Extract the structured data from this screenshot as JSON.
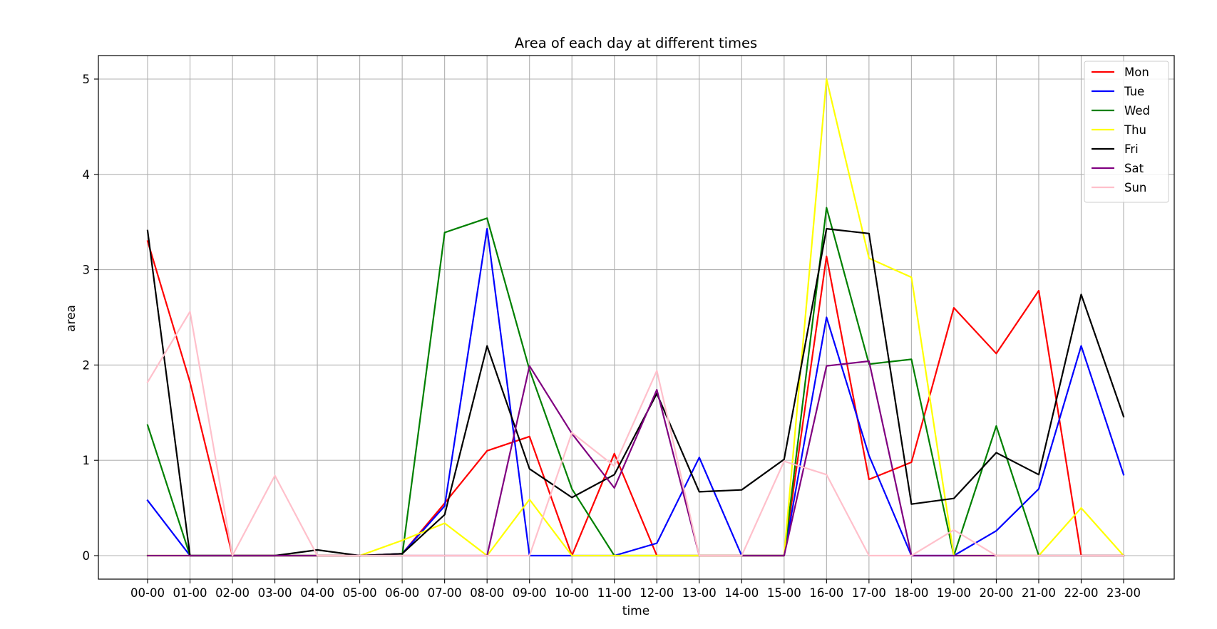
{
  "chart_data": {
    "type": "line",
    "title": "Area of each day at different times",
    "xlabel": "time",
    "ylabel": "area",
    "ylim": [
      -0.25,
      5.25
    ],
    "yticks": [
      0,
      1,
      2,
      3,
      4,
      5
    ],
    "grid": true,
    "legend_position": "top-right",
    "categories": [
      "00-00",
      "01-00",
      "02-00",
      "03-00",
      "04-00",
      "05-00",
      "06-00",
      "07-00",
      "08-00",
      "09-00",
      "10-00",
      "11-00",
      "12-00",
      "13-00",
      "14-00",
      "15-00",
      "16-00",
      "17-00",
      "18-00",
      "19-00",
      "20-00",
      "21-00",
      "22-00",
      "23-00"
    ],
    "series": [
      {
        "name": "Mon",
        "color": "#ff0000",
        "values": [
          3.3,
          1.82,
          0,
          0,
          0,
          0,
          0.02,
          0.55,
          1.1,
          1.25,
          0,
          1.07,
          0,
          0,
          0,
          0,
          3.14,
          0.8,
          0.98,
          2.6,
          2.12,
          2.78,
          0,
          0
        ]
      },
      {
        "name": "Tue",
        "color": "#0000ff",
        "values": [
          0.58,
          0,
          0,
          0,
          0,
          0,
          0.02,
          0.52,
          3.43,
          0,
          0,
          0,
          0.13,
          1.03,
          0,
          0,
          2.5,
          1.05,
          0,
          0,
          0.26,
          0.7,
          2.2,
          0.85
        ]
      },
      {
        "name": "Wed",
        "color": "#008000",
        "values": [
          1.37,
          0,
          0,
          0,
          0,
          0,
          0,
          3.39,
          3.54,
          1.95,
          0.7,
          0,
          0,
          0,
          0,
          0,
          3.65,
          2.01,
          2.06,
          0,
          1.36,
          0,
          0,
          0
        ]
      },
      {
        "name": "Thu",
        "color": "#ffff00",
        "values": [
          0,
          0,
          0,
          0,
          0,
          0,
          0.16,
          0.34,
          0,
          0.59,
          0,
          0,
          0,
          0,
          0,
          0,
          5.0,
          3.12,
          2.92,
          0,
          0,
          0,
          0.5,
          0
        ]
      },
      {
        "name": "Fri",
        "color": "#000000",
        "values": [
          3.41,
          0,
          0,
          0,
          0.06,
          0,
          0.02,
          0.43,
          2.2,
          0.91,
          0.61,
          0.85,
          1.7,
          0.67,
          0.69,
          1.01,
          3.43,
          3.38,
          0.54,
          0.6,
          1.08,
          0.85,
          2.74,
          1.46
        ]
      },
      {
        "name": "Sat",
        "color": "#800080",
        "values": [
          0,
          0,
          0,
          0,
          0,
          0,
          0,
          0,
          0,
          1.99,
          1.28,
          0.71,
          1.74,
          0,
          0,
          0,
          1.99,
          2.04,
          0,
          0,
          0,
          0,
          0,
          0
        ]
      },
      {
        "name": "Sun",
        "color": "#ffc0cb",
        "values": [
          1.82,
          2.56,
          0,
          0.84,
          0,
          0,
          0,
          0,
          0,
          0,
          1.29,
          0.94,
          1.94,
          0,
          0,
          0.99,
          0.85,
          0,
          0,
          0.27,
          0,
          0,
          0,
          0
        ]
      }
    ]
  }
}
